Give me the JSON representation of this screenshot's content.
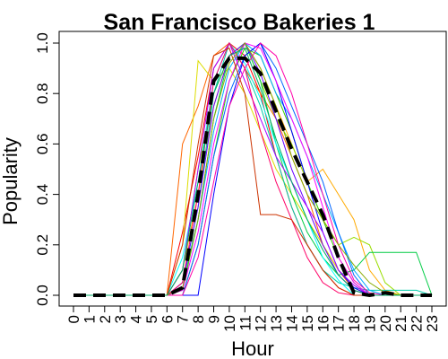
{
  "chart_data": {
    "type": "line",
    "title": "San Francisco Bakeries 1",
    "xlabel": "Hour",
    "ylabel": "Popularity",
    "xlim": [
      0,
      23
    ],
    "ylim": [
      0,
      1
    ],
    "x": [
      0,
      1,
      2,
      3,
      4,
      5,
      6,
      7,
      8,
      9,
      10,
      11,
      12,
      13,
      14,
      15,
      16,
      17,
      18,
      19,
      20,
      21,
      22,
      23
    ],
    "x_tick_labels": [
      "0",
      "1",
      "2",
      "3",
      "4",
      "5",
      "6",
      "7",
      "8",
      "9",
      "10",
      "11",
      "12",
      "13",
      "14",
      "15",
      "16",
      "17",
      "18",
      "19",
      "20",
      "21",
      "22",
      "23"
    ],
    "y_ticks": [
      0.0,
      0.2,
      0.4,
      0.6,
      0.8,
      1.0
    ],
    "y_tick_labels": [
      "0.0",
      "0.2",
      "0.4",
      "0.6",
      "0.8",
      "1.0"
    ],
    "grid": false,
    "legend": "none",
    "series": [
      {
        "color": "#ff0000",
        "values": [
          0,
          0,
          0,
          0,
          0,
          0,
          0,
          0.25,
          0.55,
          0.9,
          1.0,
          0.95,
          0.8,
          0.55,
          0.35,
          0.2,
          0.1,
          0.03,
          0,
          0,
          0,
          0,
          0,
          0
        ]
      },
      {
        "color": "#ff6600",
        "values": [
          0,
          0,
          0,
          0,
          0,
          0,
          0,
          0.6,
          0.75,
          0.95,
          1.0,
          0.9,
          0.8,
          0.7,
          0.55,
          0.4,
          0.2,
          0.1,
          0.02,
          0,
          0,
          0,
          0,
          0
        ]
      },
      {
        "color": "#ffaa00",
        "values": [
          0,
          0,
          0,
          0,
          0,
          0,
          0,
          0.1,
          0.4,
          0.75,
          0.95,
          1.0,
          0.9,
          0.75,
          0.6,
          0.45,
          0.5,
          0.4,
          0.3,
          0.1,
          0.02,
          0,
          0,
          0
        ]
      },
      {
        "color": "#dddd00",
        "values": [
          0,
          0,
          0,
          0,
          0,
          0,
          0,
          0.2,
          0.93,
          0.85,
          0.9,
          0.8,
          0.65,
          0.5,
          0.4,
          0.3,
          0.2,
          0.1,
          0.03,
          0,
          0,
          0,
          0,
          0
        ]
      },
      {
        "color": "#99dd00",
        "values": [
          0,
          0,
          0,
          0,
          0,
          0,
          0,
          0.1,
          0.5,
          0.8,
          0.95,
          1.0,
          0.85,
          0.7,
          0.6,
          0.45,
          0.3,
          0.2,
          0.23,
          0.2,
          0.05,
          0,
          0,
          0
        ]
      },
      {
        "color": "#33cc00",
        "values": [
          0,
          0,
          0,
          0,
          0,
          0,
          0,
          0,
          0.2,
          0.55,
          0.85,
          0.98,
          0.95,
          0.8,
          0.65,
          0.45,
          0.3,
          0.15,
          0.05,
          0,
          0,
          0,
          0,
          0
        ]
      },
      {
        "color": "#00cc44",
        "values": [
          0,
          0,
          0,
          0,
          0,
          0,
          0,
          0.02,
          0.3,
          0.7,
          0.95,
          1.0,
          0.85,
          0.6,
          0.4,
          0.25,
          0.15,
          0.08,
          0.1,
          0.17,
          0.17,
          0.17,
          0.17,
          0
        ]
      },
      {
        "color": "#00ccaa",
        "values": [
          0,
          0,
          0,
          0,
          0,
          0,
          0,
          0.05,
          0.35,
          0.8,
          1.0,
          0.9,
          0.75,
          0.55,
          0.35,
          0.2,
          0.1,
          0.05,
          0.03,
          0.02,
          0.02,
          0.02,
          0.02,
          0
        ]
      },
      {
        "color": "#00ffff",
        "values": [
          0,
          0,
          0,
          0,
          0,
          0,
          0,
          0.15,
          0.45,
          0.85,
          1.0,
          0.92,
          0.78,
          0.6,
          0.45,
          0.3,
          0.15,
          0.06,
          0,
          0,
          0,
          0,
          0,
          0
        ]
      },
      {
        "color": "#00aaff",
        "values": [
          0,
          0,
          0,
          0,
          0,
          0,
          0,
          0.05,
          0.3,
          0.65,
          0.9,
          1.0,
          0.95,
          0.8,
          0.7,
          0.55,
          0.4,
          0.25,
          0.1,
          0.02,
          0,
          0,
          0,
          0
        ]
      },
      {
        "color": "#0066ff",
        "values": [
          0,
          0,
          0,
          0,
          0,
          0,
          0,
          0,
          0.2,
          0.55,
          0.8,
          0.95,
          1.0,
          0.9,
          0.75,
          0.6,
          0.45,
          0.25,
          0.08,
          0,
          0,
          0,
          0,
          0
        ]
      },
      {
        "color": "#0000ff",
        "values": [
          0,
          0,
          0,
          0,
          0,
          0,
          0,
          0,
          0,
          0.4,
          0.75,
          0.95,
          1.0,
          0.85,
          0.65,
          0.45,
          0.25,
          0.1,
          0.03,
          0,
          0,
          0,
          0,
          0
        ]
      },
      {
        "color": "#6600ff",
        "values": [
          0,
          0,
          0,
          0,
          0,
          0,
          0,
          0.05,
          0.35,
          0.75,
          0.95,
          1.0,
          0.88,
          0.7,
          0.5,
          0.35,
          0.2,
          0.08,
          0.02,
          0,
          0,
          0,
          0,
          0
        ]
      },
      {
        "color": "#aa00ff",
        "values": [
          0,
          0,
          0,
          0,
          0,
          0,
          0,
          0.1,
          0.5,
          0.9,
          1.0,
          0.85,
          0.7,
          0.55,
          0.45,
          0.35,
          0.25,
          0.1,
          0.04,
          0,
          0,
          0,
          0,
          0
        ]
      },
      {
        "color": "#ff00ff",
        "values": [
          0,
          0,
          0,
          0,
          0,
          0,
          0,
          0.02,
          0.25,
          0.6,
          0.85,
          1.0,
          0.98,
          0.85,
          0.7,
          0.55,
          0.35,
          0.15,
          0.05,
          0,
          0,
          0,
          0,
          0
        ]
      },
      {
        "color": "#ff00aa",
        "values": [
          0,
          0,
          0,
          0,
          0,
          0,
          0,
          0,
          0.15,
          0.45,
          0.75,
          0.9,
          1.0,
          0.95,
          0.8,
          0.6,
          0.4,
          0.2,
          0.06,
          0.01,
          0,
          0,
          0,
          0
        ]
      },
      {
        "color": "#ff0066",
        "values": [
          0,
          0,
          0,
          0,
          0,
          0,
          0,
          0.05,
          0.4,
          0.85,
          1.0,
          0.9,
          0.65,
          0.45,
          0.3,
          0.15,
          0.05,
          0.01,
          0,
          0,
          0,
          0,
          0,
          0
        ]
      },
      {
        "color": "#cc3300",
        "values": [
          0,
          0,
          0,
          0,
          0,
          0,
          0,
          0.2,
          0.6,
          0.95,
          0.98,
          0.8,
          0.32,
          0.32,
          0.3,
          0.2,
          0.1,
          0.03,
          0,
          0,
          0,
          0,
          0,
          0
        ]
      },
      {
        "color": "#88aa00",
        "values": [
          0,
          0,
          0,
          0,
          0,
          0,
          0,
          0.03,
          0.3,
          0.7,
          0.92,
          1.0,
          0.9,
          0.75,
          0.55,
          0.4,
          0.3,
          0.2,
          0.12,
          0.05,
          0.01,
          0,
          0,
          0
        ]
      },
      {
        "color": "#00aa66",
        "values": [
          0,
          0,
          0,
          0,
          0,
          0,
          0,
          0.1,
          0.45,
          0.8,
          0.95,
          0.98,
          0.82,
          0.62,
          0.45,
          0.3,
          0.18,
          0.08,
          0.02,
          0,
          0,
          0,
          0,
          0
        ]
      }
    ],
    "mean_series": {
      "color": "#000000",
      "values": [
        0,
        0,
        0,
        0,
        0,
        0,
        0,
        0.03,
        0.4,
        0.85,
        0.94,
        0.94,
        0.88,
        0.73,
        0.58,
        0.45,
        0.32,
        0.15,
        0.01,
        0,
        0.01,
        0,
        0,
        0
      ]
    }
  }
}
